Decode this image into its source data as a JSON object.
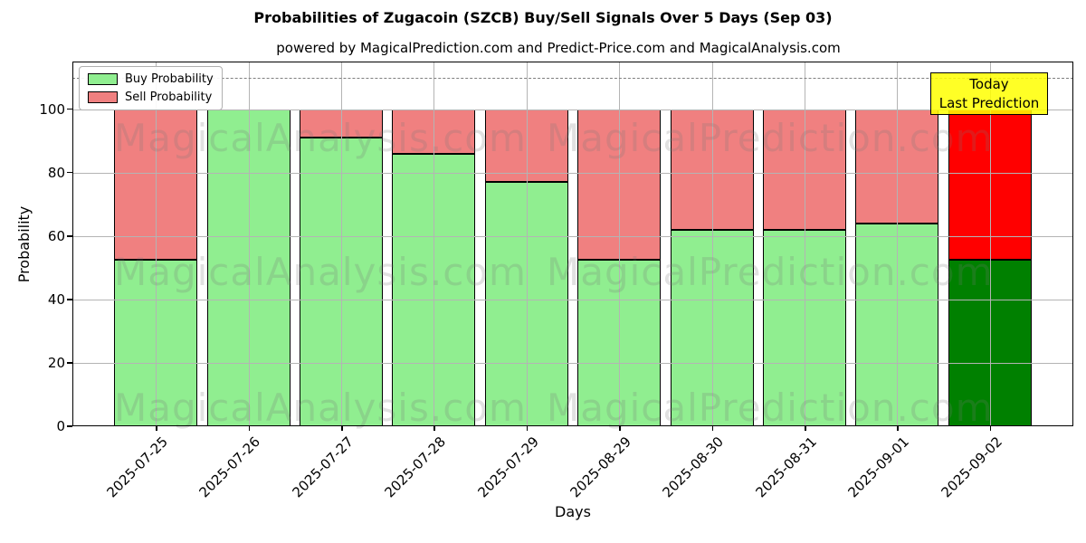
{
  "chart_data": {
    "type": "bar",
    "stacked": true,
    "title": "Probabilities of Zugacoin (SZCB) Buy/Sell Signals Over 5 Days (Sep 03)",
    "subtitle": "powered by MagicalPrediction.com and Predict-Price.com and MagicalAnalysis.com",
    "xlabel": "Days",
    "ylabel": "Probability",
    "categories": [
      "2025-07-25",
      "2025-07-26",
      "2025-07-27",
      "2025-07-28",
      "2025-07-29",
      "2025-08-29",
      "2025-08-30",
      "2025-08-31",
      "2025-09-01",
      "2025-09-02"
    ],
    "series": [
      {
        "name": "Buy Probability",
        "color": "#90EE90",
        "values": [
          52.5,
          100,
          91,
          86,
          77,
          52.5,
          62,
          62,
          64,
          52.5
        ]
      },
      {
        "name": "Sell Probability",
        "color": "#F08080",
        "values": [
          47.5,
          0,
          9,
          14,
          23,
          47.5,
          38,
          38,
          36,
          47.5
        ]
      }
    ],
    "today_bar": {
      "index": 9,
      "buy_color": "#008000",
      "sell_color": "#FF0000"
    },
    "annotation": {
      "lines": [
        "Today",
        "Last Prediction"
      ],
      "bg_color": "#FFFF00"
    },
    "dashed_line_y": 110,
    "ylim": [
      0,
      115
    ],
    "yticks": [
      0,
      20,
      40,
      60,
      80,
      100
    ],
    "grid": true,
    "legend_position": "upper left",
    "bar_edge_color": "#000000",
    "watermarks": {
      "analysis": "MagicalAnalysis.com",
      "prediction": "MagicalPrediction.com"
    }
  }
}
